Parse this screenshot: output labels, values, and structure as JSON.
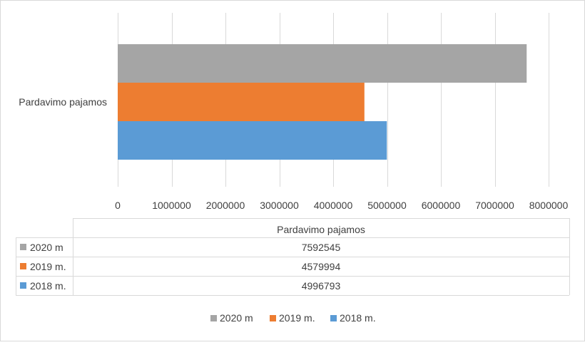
{
  "chart_data": {
    "type": "bar",
    "orientation": "horizontal",
    "categories": [
      "Pardavimo pajamos"
    ],
    "series": [
      {
        "name": "2020 m",
        "values": [
          7592545
        ],
        "color": "#A5A5A5"
      },
      {
        "name": "2019 m.",
        "values": [
          4579994
        ],
        "color": "#ED7D31"
      },
      {
        "name": "2018 m.",
        "values": [
          4996793
        ],
        "color": "#5B9BD5"
      }
    ],
    "xlim": [
      0,
      8000000
    ],
    "xticks": [
      "0",
      "1000000",
      "2000000",
      "3000000",
      "4000000",
      "5000000",
      "6000000",
      "7000000",
      "8000000"
    ],
    "grid": true,
    "data_table": {
      "header": "Pardavimo pajamos",
      "rows": [
        {
          "label": "2020 m",
          "value": "7592545"
        },
        {
          "label": "2019 m.",
          "value": "4579994"
        },
        {
          "label": "2018 m.",
          "value": "4996793"
        }
      ]
    },
    "legend": {
      "position": "bottom",
      "entries": [
        "2020 m",
        "2019 m.",
        "2018 m."
      ]
    }
  }
}
